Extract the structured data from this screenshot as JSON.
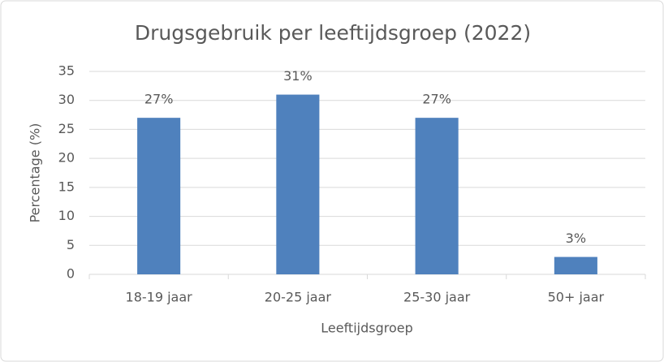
{
  "chart_data": {
    "type": "bar",
    "title": "Drugsgebruik per leeftijdsgroep (2022)",
    "x_label": "Leeftijdsgroep",
    "y_label": "Percentage (%)",
    "categories": [
      "18-19 jaar",
      "20-25 jaar",
      "25-30 jaar",
      "50+ jaar"
    ],
    "values": [
      27,
      31,
      27,
      3
    ],
    "value_labels": [
      "27%",
      "31%",
      "27%",
      "3%"
    ],
    "color": "#4f81bd",
    "ylim": [
      0,
      35
    ],
    "yticks": [
      0,
      5,
      10,
      15,
      20,
      25,
      30,
      35
    ],
    "grid": true
  }
}
